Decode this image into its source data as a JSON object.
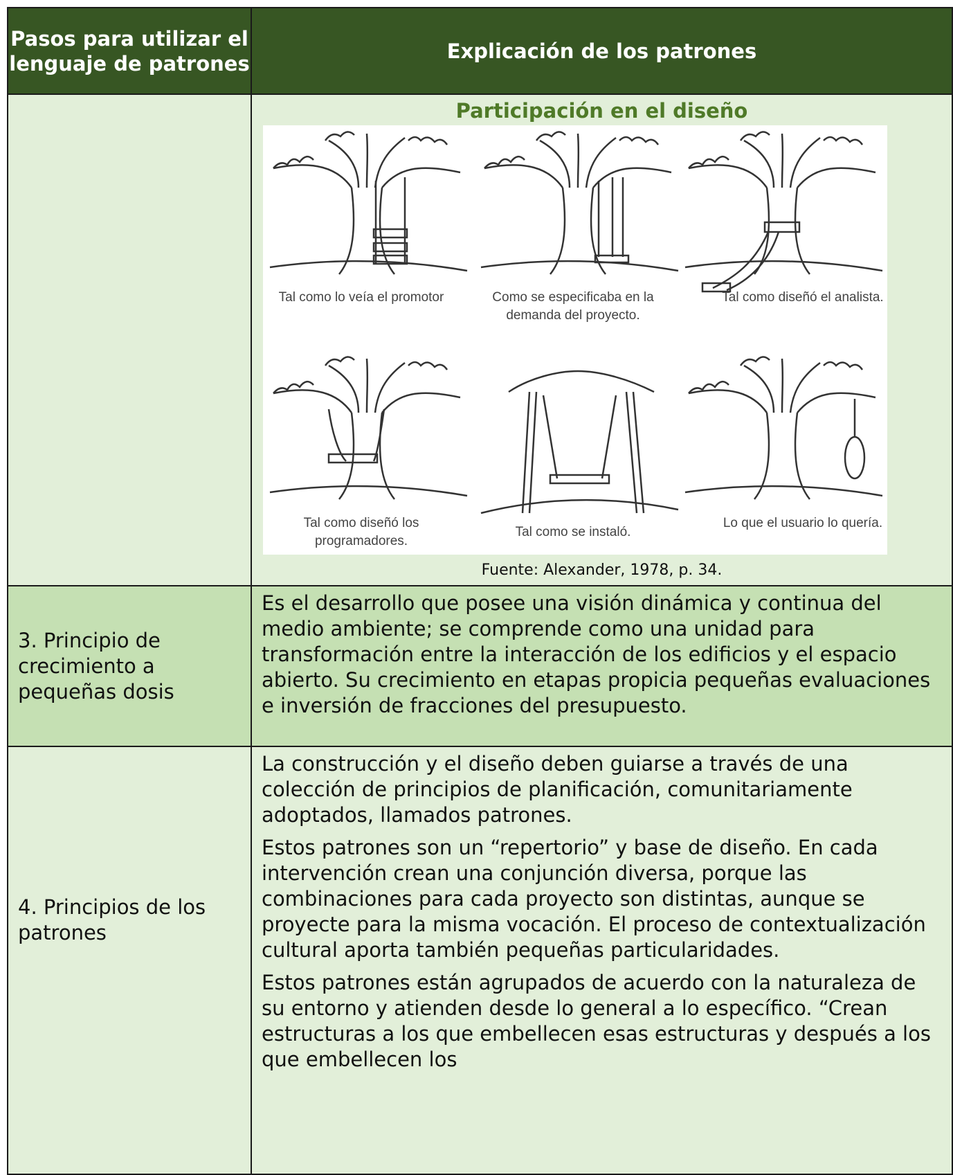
{
  "table": {
    "header": [
      "Pasos para utilizar el lenguaje de patrones",
      "Explicación de los patrones"
    ],
    "rows": [
      {
        "figure": {
          "title": "Participación en el diseño",
          "captions": [
            "Tal como lo veía el promotor",
            "Como se especificaba en la demanda del proyecto.",
            "Tal como diseñó el analista.",
            "Tal como diseñó los programadores.",
            "Tal como se instaló.",
            "Lo que el usuario lo quería."
          ],
          "source": "Fuente: Alexander, 1978, p. 34."
        }
      },
      {
        "step": "3. Principio de crecimiento a pequeñas dosis",
        "paragraphs": [
          "Es el desarrollo que posee una visión dinámica y continua del medio ambiente; se comprende como una unidad para transformación entre la interacción de los edificios y el espacio abierto. Su crecimiento en etapas propicia pequeñas evaluaciones e inversión de fracciones del presupuesto."
        ]
      },
      {
        "step": "4. Principios de los patrones",
        "paragraphs": [
          "La construcción y el diseño deben guiarse a través de una colección de principios de planificación, comunitariamente adoptados, llamados patrones.",
          "Estos patrones son un “repertorio” y base de diseño. En cada intervención crean una conjunción diversa, porque las combinaciones para cada proyecto son distintas, aunque se proyecte para la misma vocación. El proceso de contextualización cultural aporta también pequeñas particularidades.",
          "Estos patrones están agrupados de acuerdo con la naturaleza de su entorno y atienden desde lo general a lo específico. “Crean estructuras a los que embellecen esas estructuras y después a los que embellecen los"
        ]
      }
    ]
  }
}
